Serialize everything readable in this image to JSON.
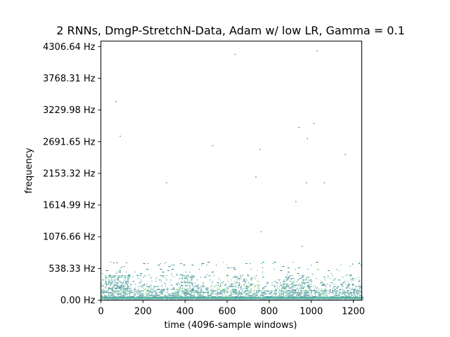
{
  "chart_data": {
    "type": "heatmap",
    "title": "2 RNNs, DmgP-StretchN-Data, Adam w/ low LR, Gamma = 0.1",
    "xlabel": "time (4096-sample windows)",
    "ylabel": "frequency",
    "xlim": [
      0,
      1240
    ],
    "ylim": [
      0,
      4400
    ],
    "xticks": [
      0,
      200,
      400,
      600,
      800,
      1000,
      1200
    ],
    "xtick_labels": [
      "0",
      "200",
      "400",
      "600",
      "800",
      "1000",
      "1200"
    ],
    "yticks": [
      0.0,
      538.33,
      1076.66,
      1614.99,
      2153.32,
      2691.65,
      3229.98,
      3768.31,
      4306.64
    ],
    "ytick_labels": [
      "0.00 Hz",
      "538.33 Hz",
      "1076.66 Hz",
      "1614.99 Hz",
      "2153.32 Hz",
      "2691.65 Hz",
      "3229.98 Hz",
      "3768.31 Hz",
      "4306.64 Hz"
    ],
    "grid": false,
    "colors": {
      "low": "#2a788e",
      "mid": "#22a884",
      "high": "#7ad151",
      "baseline": "#1f9e89"
    },
    "bands": [
      {
        "y0": 0,
        "y1": 60,
        "density": 0.95,
        "x0": 0,
        "x1": 1240
      },
      {
        "y0": 60,
        "y1": 160,
        "density": 0.55,
        "x0": 0,
        "x1": 1240
      },
      {
        "y0": 160,
        "y1": 260,
        "density": 0.25,
        "x0": 0,
        "x1": 1240
      },
      {
        "y0": 260,
        "y1": 420,
        "density": 0.12,
        "x0": 0,
        "x1": 1240
      },
      {
        "y0": 420,
        "y1": 650,
        "density": 0.03,
        "x0": 0,
        "x1": 1240
      },
      {
        "y0": 100,
        "y1": 420,
        "density": 0.35,
        "x0": 20,
        "x1": 140
      },
      {
        "y0": 100,
        "y1": 420,
        "density": 0.28,
        "x0": 380,
        "x1": 440
      },
      {
        "y0": 100,
        "y1": 420,
        "density": 0.22,
        "x0": 620,
        "x1": 720
      },
      {
        "y0": 100,
        "y1": 420,
        "density": 0.22,
        "x0": 860,
        "x1": 1000
      }
    ],
    "scattered_points": [
      {
        "x": 70,
        "y": 3380
      },
      {
        "x": 90,
        "y": 2790
      },
      {
        "x": 310,
        "y": 2000
      },
      {
        "x": 530,
        "y": 2630
      },
      {
        "x": 635,
        "y": 4180
      },
      {
        "x": 735,
        "y": 2100
      },
      {
        "x": 755,
        "y": 2570
      },
      {
        "x": 760,
        "y": 1170
      },
      {
        "x": 925,
        "y": 1680
      },
      {
        "x": 940,
        "y": 2940
      },
      {
        "x": 955,
        "y": 920
      },
      {
        "x": 975,
        "y": 2000
      },
      {
        "x": 980,
        "y": 2750
      },
      {
        "x": 1010,
        "y": 3010
      },
      {
        "x": 1025,
        "y": 4240
      },
      {
        "x": 1060,
        "y": 2000
      },
      {
        "x": 1160,
        "y": 2480
      },
      {
        "x": 1195,
        "y": 620
      },
      {
        "x": 60,
        "y": 640
      },
      {
        "x": 75,
        "y": 640
      },
      {
        "x": 120,
        "y": 640
      }
    ]
  }
}
